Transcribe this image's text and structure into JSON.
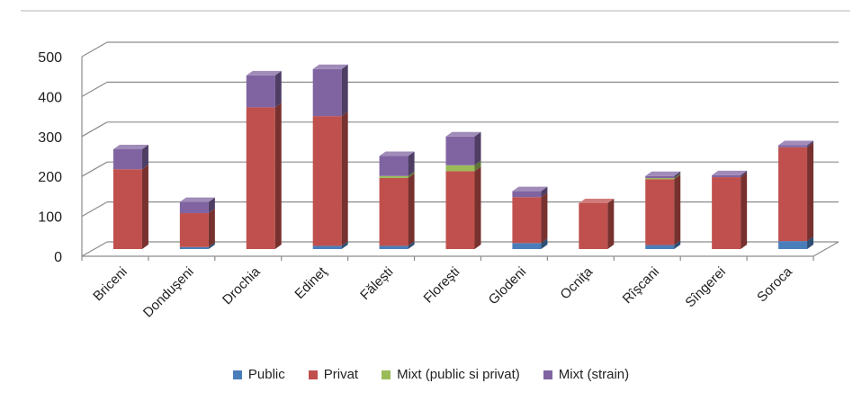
{
  "chart_data": {
    "type": "bar",
    "stacked": true,
    "three_d": true,
    "categories": [
      "Briceni",
      "Donduşeni",
      "Drochia",
      "Edineţ",
      "Fălești",
      "Floreşti",
      "Glodeni",
      "Ocniţa",
      "Rîşcani",
      "Sîngerei",
      "Soroca"
    ],
    "series": [
      {
        "name": "Public",
        "color": "#4a7ebb",
        "values": [
          0,
          5,
          0,
          8,
          8,
          0,
          15,
          0,
          10,
          0,
          20
        ]
      },
      {
        "name": "Privat",
        "color": "#c0504d",
        "values": [
          200,
          85,
          355,
          325,
          170,
          195,
          115,
          115,
          165,
          180,
          235
        ]
      },
      {
        "name": "Mixt (public si privat)",
        "color": "#9bbb59",
        "values": [
          0,
          0,
          0,
          0,
          5,
          15,
          0,
          0,
          3,
          0,
          0
        ]
      },
      {
        "name": "Mixt (strain)",
        "color": "#8064a2",
        "values": [
          50,
          28,
          80,
          118,
          50,
          72,
          15,
          0,
          5,
          5,
          5
        ]
      }
    ],
    "yticks": [
      0,
      100,
      200,
      300,
      400,
      500
    ],
    "ylim": [
      0,
      500
    ],
    "grid": true,
    "legend": {
      "position": "bottom"
    }
  }
}
